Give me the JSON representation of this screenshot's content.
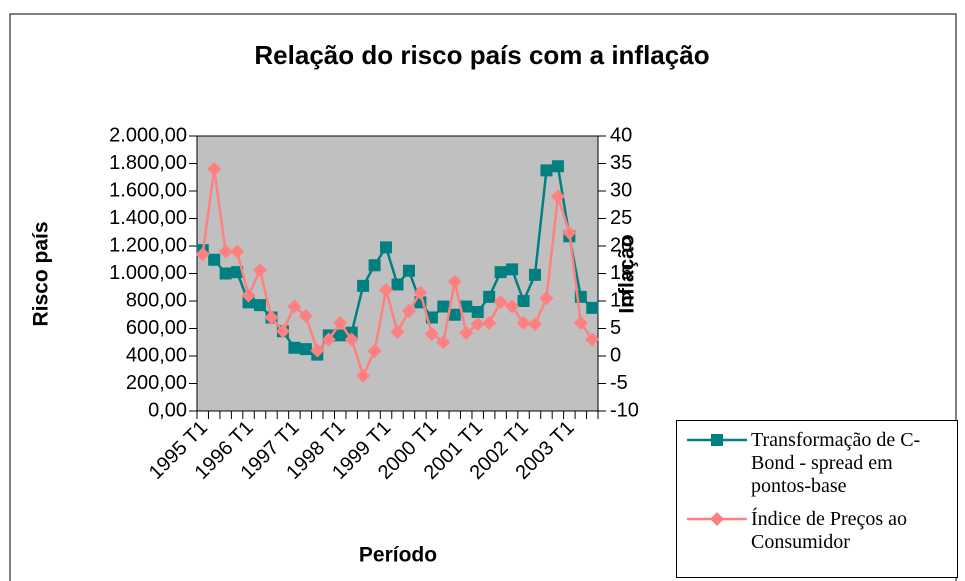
{
  "chart_data": {
    "type": "line",
    "title": "Relação do risco país com a inflação",
    "x_label": "Período",
    "y_label": "Risco país",
    "y2_label": "Inflação",
    "categories": [
      "1995 T1",
      null,
      null,
      null,
      "1996 T1",
      null,
      null,
      null,
      "1997 T1",
      null,
      null,
      null,
      "1998 T1",
      null,
      null,
      null,
      "1999 T1",
      null,
      null,
      null,
      "2000 T1",
      null,
      null,
      null,
      "2001 T1",
      null,
      null,
      null,
      "2002 T1",
      null,
      null,
      null,
      "2003 T1",
      null,
      null
    ],
    "series": [
      {
        "name": "Transformação de C-Bond - spread em pontos-base",
        "color": "#008080",
        "axis": "y",
        "values": [
          1170,
          1100,
          1000,
          1010,
          790,
          770,
          680,
          580,
          460,
          450,
          410,
          550,
          550,
          570,
          910,
          1060,
          1190,
          920,
          1020,
          790,
          680,
          760,
          700,
          760,
          720,
          830,
          1010,
          1030,
          800,
          990,
          1750,
          1780,
          1270,
          830,
          750
        ]
      },
      {
        "name": "Índice de Preços ao Consumidor",
        "color": "#ff8080",
        "axis": "y2",
        "values": [
          18.5,
          34,
          19,
          19,
          11,
          15.6,
          7,
          4.5,
          9,
          7.3,
          1,
          3,
          6,
          3,
          -3.6,
          0.9,
          12,
          4.4,
          8.2,
          11.5,
          4,
          2.5,
          13.5,
          4.2,
          5.8,
          6,
          9.8,
          9,
          6,
          5.8,
          10.5,
          29,
          22.4,
          6,
          3
        ]
      }
    ],
    "ylim": [
      0,
      2000
    ],
    "yticks": [
      {
        "value": 0,
        "label": "0,00"
      },
      {
        "value": 200,
        "label": "200,00"
      },
      {
        "value": 400,
        "label": "400,00"
      },
      {
        "value": 600,
        "label": "600,00"
      },
      {
        "value": 800,
        "label": "800,00"
      },
      {
        "value": 1000,
        "label": "1.000,00"
      },
      {
        "value": 1200,
        "label": "1.200,00"
      },
      {
        "value": 1400,
        "label": "1.400,00"
      },
      {
        "value": 1600,
        "label": "1.600,00"
      },
      {
        "value": 1800,
        "label": "1.800,00"
      },
      {
        "value": 2000,
        "label": "2.000,00"
      }
    ],
    "y2lim": [
      -10,
      40
    ],
    "y2ticks": [
      -10,
      -5,
      0,
      5,
      10,
      15,
      20,
      25,
      30,
      35,
      40
    ],
    "plot_background": "#c0c0c0"
  }
}
